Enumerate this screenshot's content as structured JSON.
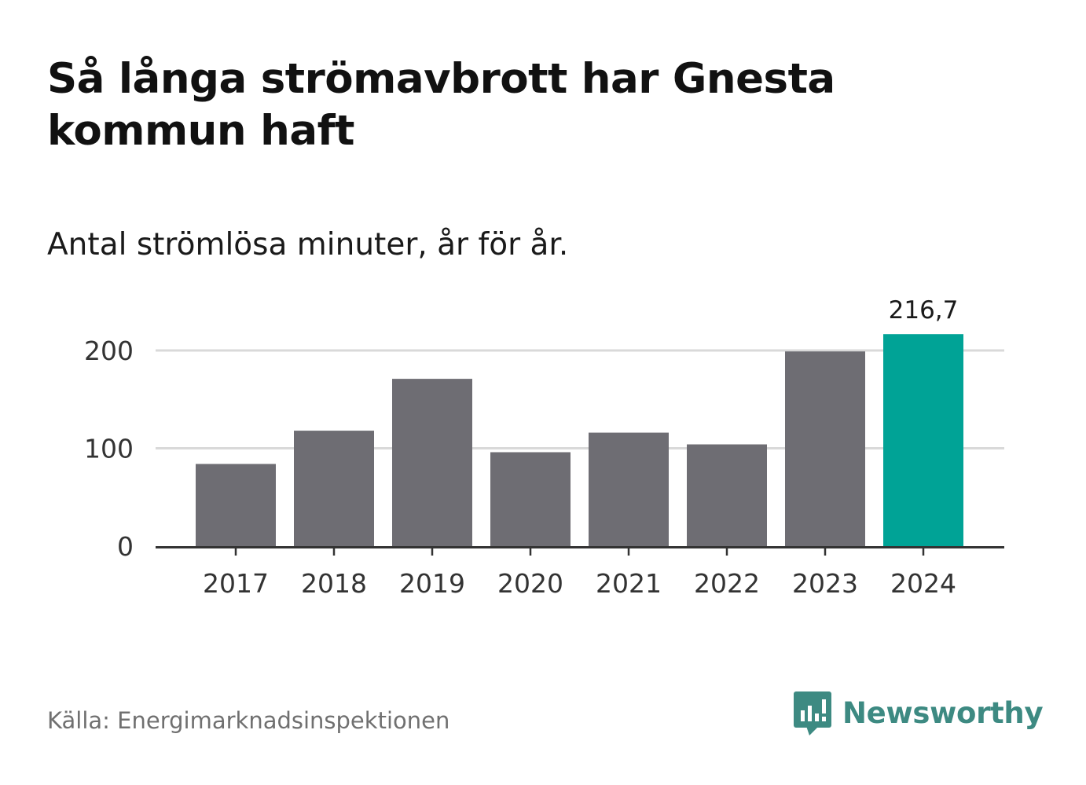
{
  "header": {
    "title": "Så långa strömavbrott har Gnesta kommun haft",
    "subtitle": "Antal strömlösa minuter, år för år."
  },
  "footer": {
    "source": "Källa: Energimarknadsinspektionen",
    "brand": "Newsworthy",
    "brand_icon": "chart-speech-bubble-icon"
  },
  "colors": {
    "bar": "#6e6d73",
    "highlight": "#00a396",
    "grid": "#d9d9d9",
    "axis": "#333333",
    "brand": "#3d8a82"
  },
  "chart_data": {
    "type": "bar",
    "title": "Så långa strömavbrott har Gnesta kommun haft",
    "subtitle": "Antal strömlösa minuter, år för år.",
    "xlabel": "",
    "ylabel": "",
    "categories": [
      "2017",
      "2018",
      "2019",
      "2020",
      "2021",
      "2022",
      "2023",
      "2024"
    ],
    "values": [
      84,
      118,
      171,
      96,
      116,
      104,
      199,
      216.7
    ],
    "highlight_index": 7,
    "highlight_label": "216,7",
    "ylim": [
      0,
      216.7
    ],
    "yticks": [
      0,
      100,
      200
    ],
    "ytick_labels": [
      "0",
      "100",
      "200"
    ],
    "grid": true
  }
}
